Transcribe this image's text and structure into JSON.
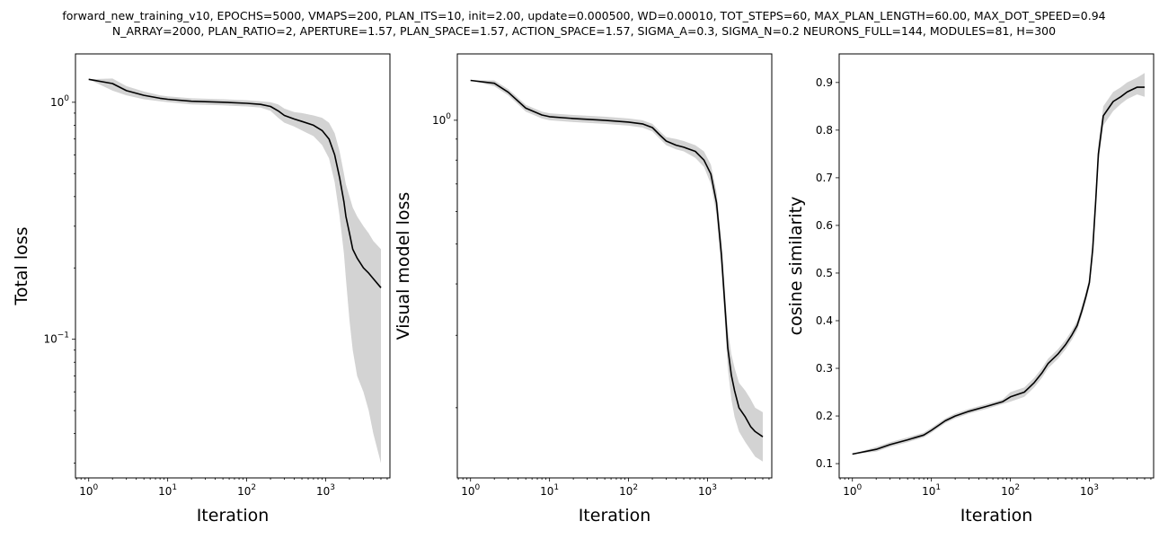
{
  "title": {
    "line1": "forward_new_training_v10, EPOCHS=5000, VMAPS=200, PLAN_ITS=10, init=2.00, update=0.000500, WD=0.00010, TOT_STEPS=60, MAX_PLAN_LENGTH=60.00, MAX_DOT_SPEED=0.94",
    "line2": "N_ARRAY=2000, PLAN_RATIO=2, APERTURE=1.57, PLAN_SPACE=1.57, ACTION_SPACE=1.57, SIGMA_A=0.3, SIGMA_N=0.2 NEURONS_FULL=144, MODULES=81, H=300"
  },
  "colors": {
    "mean_line": "#000000",
    "band": "#d3d3d3",
    "axes": "#000000"
  },
  "chart_data": [
    {
      "type": "line",
      "xlabel": "Iteration",
      "ylabel": "Total loss",
      "xscale": "log",
      "yscale": "log",
      "xlim": [
        0.68,
        6500
      ],
      "ylim": [
        0.026,
        1.6
      ],
      "xticks": [
        1,
        10,
        100,
        1000
      ],
      "xtick_labels": [
        "10^0",
        "10^1",
        "10^2",
        "10^3"
      ],
      "yticks": [
        0.1,
        1
      ],
      "ytick_labels": [
        "10^-1",
        "10^0"
      ],
      "series": [
        {
          "x": [
            1,
            2,
            3,
            5,
            8,
            10,
            20,
            50,
            100,
            150,
            200,
            250,
            300,
            400,
            500,
            700,
            900,
            1100,
            1300,
            1500,
            1700,
            1800,
            2000,
            2200,
            2500,
            3000,
            3500,
            4000,
            5000
          ],
          "y": [
            1.25,
            1.2,
            1.12,
            1.07,
            1.04,
            1.03,
            1.01,
            1.0,
            0.99,
            0.98,
            0.96,
            0.92,
            0.88,
            0.85,
            0.83,
            0.8,
            0.76,
            0.7,
            0.6,
            0.48,
            0.38,
            0.33,
            0.28,
            0.24,
            0.22,
            0.2,
            0.19,
            0.18,
            0.165
          ],
          "band_low": [
            1.25,
            1.12,
            1.07,
            1.03,
            1.01,
            1.0,
            0.98,
            0.97,
            0.96,
            0.95,
            0.92,
            0.86,
            0.82,
            0.79,
            0.76,
            0.72,
            0.66,
            0.58,
            0.46,
            0.33,
            0.23,
            0.18,
            0.12,
            0.09,
            0.07,
            0.06,
            0.05,
            0.04,
            0.03
          ],
          "band_high": [
            1.25,
            1.26,
            1.17,
            1.11,
            1.07,
            1.06,
            1.04,
            1.03,
            1.02,
            1.01,
            1.0,
            0.98,
            0.94,
            0.91,
            0.9,
            0.88,
            0.86,
            0.82,
            0.74,
            0.62,
            0.5,
            0.45,
            0.4,
            0.36,
            0.33,
            0.3,
            0.28,
            0.26,
            0.24
          ]
        }
      ]
    },
    {
      "type": "line",
      "xlabel": "Iteration",
      "ylabel": "Visual model loss",
      "xscale": "log",
      "yscale": "log",
      "xlim": [
        0.68,
        6500
      ],
      "ylim": [
        0.135,
        1.45
      ],
      "xticks": [
        1,
        10,
        100,
        1000
      ],
      "xtick_labels": [
        "10^0",
        "10^1",
        "10^2",
        "10^3"
      ],
      "yticks": [
        1
      ],
      "ytick_labels": [
        "10^0"
      ],
      "series": [
        {
          "x": [
            1,
            2,
            3,
            5,
            8,
            10,
            20,
            50,
            100,
            150,
            200,
            250,
            300,
            400,
            500,
            700,
            900,
            1100,
            1300,
            1500,
            1700,
            1800,
            2000,
            2200,
            2500,
            3000,
            3500,
            4000,
            5000
          ],
          "y": [
            1.25,
            1.23,
            1.17,
            1.07,
            1.03,
            1.02,
            1.01,
            1.0,
            0.99,
            0.98,
            0.96,
            0.92,
            0.89,
            0.87,
            0.86,
            0.84,
            0.8,
            0.74,
            0.63,
            0.47,
            0.33,
            0.28,
            0.24,
            0.22,
            0.2,
            0.19,
            0.18,
            0.175,
            0.17
          ],
          "band_low": [
            1.25,
            1.21,
            1.15,
            1.05,
            1.01,
            1.0,
            0.99,
            0.98,
            0.97,
            0.96,
            0.94,
            0.9,
            0.87,
            0.85,
            0.84,
            0.81,
            0.77,
            0.7,
            0.59,
            0.43,
            0.3,
            0.25,
            0.21,
            0.19,
            0.175,
            0.165,
            0.158,
            0.152,
            0.148
          ],
          "band_high": [
            1.25,
            1.25,
            1.19,
            1.09,
            1.05,
            1.04,
            1.03,
            1.02,
            1.01,
            1.0,
            0.98,
            0.94,
            0.91,
            0.9,
            0.89,
            0.87,
            0.84,
            0.78,
            0.67,
            0.51,
            0.36,
            0.31,
            0.27,
            0.25,
            0.23,
            0.22,
            0.21,
            0.2,
            0.195
          ]
        }
      ]
    },
    {
      "type": "line",
      "xlabel": "Iteration",
      "ylabel": "cosine similarity",
      "xscale": "log",
      "yscale": "linear",
      "xlim": [
        0.68,
        6500
      ],
      "ylim": [
        0.07,
        0.96
      ],
      "xticks": [
        1,
        10,
        100,
        1000
      ],
      "xtick_labels": [
        "10^0",
        "10^1",
        "10^2",
        "10^3"
      ],
      "yticks": [
        0.1,
        0.2,
        0.3,
        0.4,
        0.5,
        0.6,
        0.7,
        0.8,
        0.9
      ],
      "ytick_labels": [
        "0.1",
        "0.2",
        "0.3",
        "0.4",
        "0.5",
        "0.6",
        "0.7",
        "0.8",
        "0.9"
      ],
      "series": [
        {
          "x": [
            1,
            2,
            3,
            5,
            8,
            10,
            15,
            20,
            30,
            50,
            80,
            100,
            150,
            200,
            250,
            300,
            400,
            500,
            600,
            700,
            800,
            900,
            1000,
            1100,
            1200,
            1300,
            1500,
            2000,
            2500,
            3000,
            4000,
            5000
          ],
          "y": [
            0.12,
            0.13,
            0.14,
            0.15,
            0.16,
            0.17,
            0.19,
            0.2,
            0.21,
            0.22,
            0.23,
            0.24,
            0.25,
            0.27,
            0.29,
            0.31,
            0.33,
            0.35,
            0.37,
            0.39,
            0.42,
            0.45,
            0.48,
            0.55,
            0.65,
            0.75,
            0.83,
            0.86,
            0.87,
            0.88,
            0.89,
            0.89
          ],
          "band_low": [
            0.12,
            0.125,
            0.135,
            0.145,
            0.155,
            0.165,
            0.185,
            0.195,
            0.205,
            0.215,
            0.225,
            0.23,
            0.24,
            0.26,
            0.28,
            0.3,
            0.32,
            0.34,
            0.36,
            0.38,
            0.41,
            0.44,
            0.47,
            0.53,
            0.63,
            0.73,
            0.81,
            0.84,
            0.855,
            0.865,
            0.875,
            0.87
          ],
          "band_high": [
            0.12,
            0.135,
            0.145,
            0.155,
            0.165,
            0.175,
            0.195,
            0.205,
            0.215,
            0.225,
            0.235,
            0.25,
            0.26,
            0.28,
            0.3,
            0.32,
            0.34,
            0.36,
            0.38,
            0.4,
            0.43,
            0.46,
            0.49,
            0.57,
            0.67,
            0.77,
            0.85,
            0.88,
            0.89,
            0.9,
            0.91,
            0.92
          ]
        }
      ]
    }
  ]
}
